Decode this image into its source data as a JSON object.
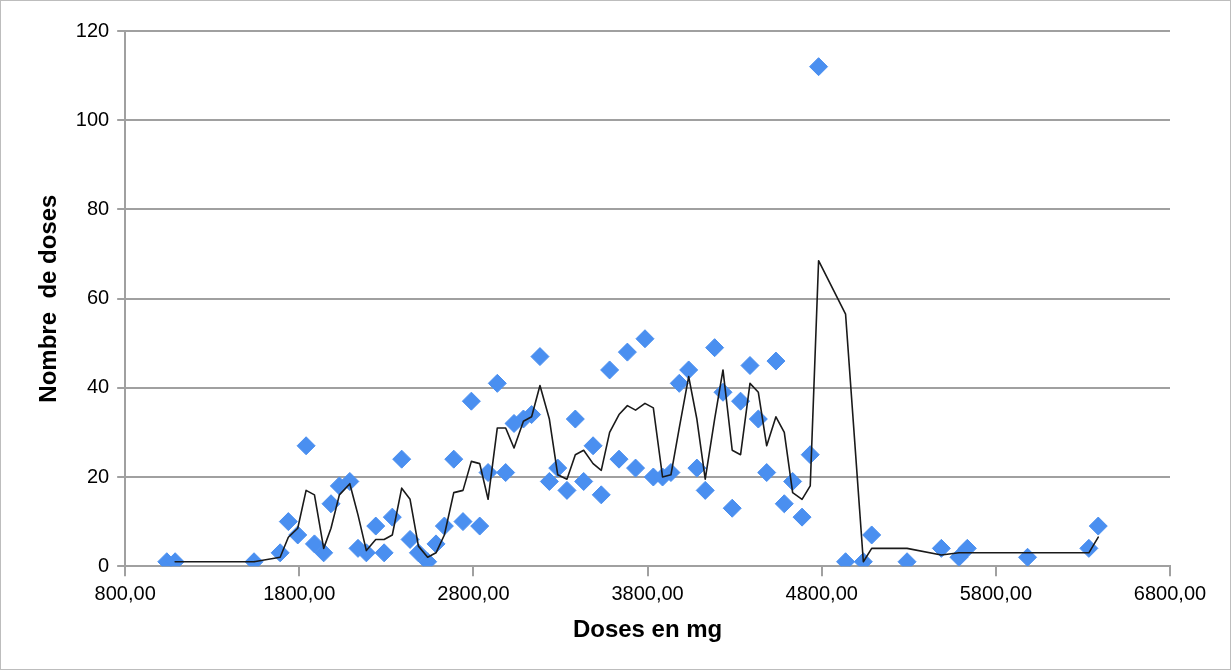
{
  "chart_data": {
    "type": "scatter",
    "xlabel": "Doses en mg",
    "ylabel": "Nombre  de doses",
    "xlim": [
      800,
      6800
    ],
    "xticks": [
      {
        "value": 800,
        "label": "800,00"
      },
      {
        "value": 1800,
        "label": "1800,00"
      },
      {
        "value": 2800,
        "label": "2800,00"
      },
      {
        "value": 3800,
        "label": "3800,00"
      },
      {
        "value": 4800,
        "label": "4800,00"
      },
      {
        "value": 5800,
        "label": "5800,00"
      },
      {
        "value": 6800,
        "label": "6800,00"
      }
    ],
    "ylim": [
      0,
      120
    ],
    "yticks": [
      0,
      20,
      40,
      60,
      80,
      100,
      120
    ],
    "grid": "y",
    "marker": "diamond",
    "series": [
      {
        "type": "scatter",
        "color": "#4a8ff0",
        "x": [
          1039,
          1087,
          1540,
          1690,
          1737,
          1791,
          1839,
          1887,
          1940,
          1982,
          2030,
          2090,
          2137,
          2185,
          2239,
          2287,
          2334,
          2388,
          2436,
          2484,
          2537,
          2585,
          2633,
          2687,
          2740,
          2788,
          2836,
          2884,
          2937,
          2985,
          3033,
          3087,
          3134,
          3182,
          3236,
          3284,
          3337,
          3385,
          3433,
          3487,
          3534,
          3582,
          3636,
          3684,
          3731,
          3785,
          3833,
          3886,
          3934,
          3982,
          4036,
          4083,
          4131,
          4185,
          4233,
          4286,
          4334,
          4388,
          4436,
          4484,
          4537,
          4585,
          4633,
          4687,
          4734,
          4782,
          4937,
          5039,
          5087,
          5290,
          5487,
          5588,
          5636,
          5982,
          6334,
          6388
        ],
        "values": [
          1,
          1,
          1,
          3,
          10,
          7,
          27,
          5,
          3,
          14,
          18,
          19,
          4,
          3,
          9,
          3,
          11,
          24,
          6,
          3,
          1,
          5,
          9,
          24,
          10,
          37,
          9,
          21,
          41,
          21,
          32,
          33,
          34,
          47,
          19,
          22,
          17,
          33,
          19,
          27,
          16,
          44,
          24,
          48,
          22,
          51,
          20,
          20,
          21,
          41,
          44,
          22,
          17,
          49,
          39,
          13,
          37,
          45,
          33,
          21,
          46,
          14,
          19,
          11,
          25,
          112,
          1,
          1,
          7,
          1,
          4,
          2,
          4,
          2,
          4,
          9
        ]
      },
      {
        "type": "line",
        "color": "#1a1a1a",
        "marker": "none",
        "x": [
          1087,
          1540,
          1690,
          1737,
          1791,
          1839,
          1887,
          1940,
          1982,
          2030,
          2090,
          2137,
          2185,
          2239,
          2287,
          2334,
          2388,
          2436,
          2484,
          2537,
          2585,
          2633,
          2687,
          2740,
          2788,
          2836,
          2884,
          2937,
          2985,
          3033,
          3087,
          3134,
          3182,
          3236,
          3284,
          3337,
          3385,
          3433,
          3487,
          3534,
          3582,
          3636,
          3684,
          3731,
          3785,
          3833,
          3886,
          3934,
          3982,
          4036,
          4083,
          4131,
          4185,
          4233,
          4286,
          4334,
          4388,
          4436,
          4484,
          4537,
          4585,
          4633,
          4687,
          4734,
          4782,
          4937,
          5039,
          5087,
          5290,
          5487,
          5588,
          5636,
          5982,
          6334,
          6388
        ],
        "values": [
          1,
          1,
          2,
          6.5,
          8.5,
          17,
          16,
          4,
          8.5,
          16,
          18.5,
          11.5,
          3.5,
          6,
          6,
          7,
          17.5,
          15,
          4.5,
          2,
          3,
          7,
          16.5,
          17,
          23.5,
          23,
          15,
          31,
          31,
          26.5,
          32.5,
          33.5,
          40.5,
          33,
          20.5,
          19.5,
          25,
          26,
          23,
          21.5,
          30,
          34,
          36,
          35,
          36.5,
          35.5,
          20,
          20.5,
          31,
          42.5,
          33,
          19.5,
          33,
          44,
          26,
          25,
          41,
          39,
          27,
          33.5,
          30,
          16.5,
          15,
          18,
          68.5,
          56.5,
          1,
          4,
          4,
          2.5,
          3,
          3,
          3,
          3,
          6.5
        ]
      }
    ]
  }
}
